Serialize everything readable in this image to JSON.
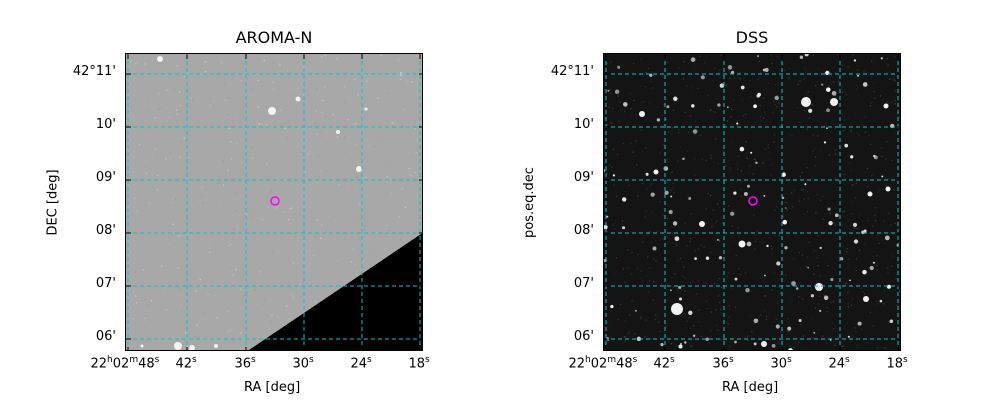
{
  "panels": [
    {
      "id": "aroma",
      "title": "AROMA-N",
      "xlabel": "RA [deg]",
      "ylabel": "DEC [deg]",
      "y_ticks": [
        "42°11'",
        "10'",
        "09'",
        "08'",
        "07'",
        "06'"
      ],
      "x_ticks": [
        {
          "h": "22",
          "m": "02",
          "s": "48"
        },
        {
          "s": "42"
        },
        {
          "s": "36"
        },
        {
          "s": "30"
        },
        {
          "s": "24"
        },
        {
          "s": "18"
        }
      ]
    },
    {
      "id": "dss",
      "title": "DSS",
      "xlabel": "RA [deg]",
      "ylabel": "pos.eq.dec",
      "y_ticks": [
        "42°11'",
        "10'",
        "09'",
        "08'",
        "07'",
        "06'"
      ],
      "x_ticks": [
        {
          "h": "22",
          "m": "02",
          "s": "48"
        },
        {
          "s": "42"
        },
        {
          "s": "36"
        },
        {
          "s": "30"
        },
        {
          "s": "24"
        },
        {
          "s": "18"
        }
      ]
    }
  ],
  "colors": {
    "grid": "#00c8c8",
    "marker": "#ff00ff",
    "aroma_bg": "#a8a8a8",
    "dss_bg": "#141414"
  }
}
